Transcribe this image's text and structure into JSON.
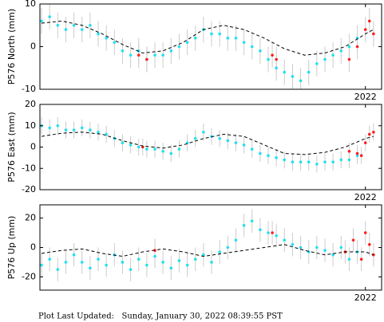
{
  "chart_data": [
    {
      "type": "scatter",
      "ylabel": "P576 North (mm)",
      "xlim": [
        2013.96,
        2022.4
      ],
      "ylim": [
        -10,
        10
      ],
      "yticks": [
        -10,
        0,
        10
      ],
      "xticks": [
        2022
      ],
      "series": [
        {
          "type": "scatter",
          "color": "#22e0f0",
          "error": 3,
          "x": [
            2014.0,
            2014.2,
            2014.4,
            2014.6,
            2014.8,
            2015.0,
            2015.2,
            2015.4,
            2015.6,
            2015.8,
            2016.0,
            2016.2,
            2016.4,
            2016.6,
            2016.8,
            2017.0,
            2017.2,
            2017.4,
            2017.6,
            2017.8,
            2018.0,
            2018.2,
            2018.4,
            2018.6,
            2018.8,
            2019.0,
            2019.2,
            2019.4,
            2019.6,
            2019.8,
            2020.0,
            2020.2,
            2020.4,
            2020.6,
            2020.8,
            2021.0,
            2021.2,
            2021.4,
            2021.6,
            2021.8
          ],
          "values": [
            6,
            7,
            5,
            4,
            5,
            4,
            5,
            3,
            2,
            1,
            -1,
            -2,
            -1,
            -3,
            -2,
            -2,
            -1,
            0,
            1,
            2,
            4,
            3,
            3,
            2,
            2,
            1,
            0,
            -1,
            -3,
            -5,
            -6,
            -7,
            -8,
            -6,
            -4,
            -3,
            -2,
            -1,
            0,
            2
          ]
        },
        {
          "type": "scatter",
          "color": "#ff2020",
          "error": 3,
          "x": [
            2016.4,
            2016.6,
            2019.7,
            2019.8,
            2021.6,
            2021.8,
            2022.0,
            2022.1,
            2022.2
          ],
          "values": [
            -2,
            -3,
            -2,
            -3,
            -3,
            0,
            4,
            6,
            3
          ]
        },
        {
          "type": "line",
          "color": "#000000",
          "x": [
            2014.0,
            2014.5,
            2015.0,
            2015.5,
            2016.0,
            2016.5,
            2017.0,
            2017.5,
            2018.0,
            2018.5,
            2019.0,
            2019.5,
            2020.0,
            2020.5,
            2021.0,
            2021.5,
            2022.0,
            2022.2
          ],
          "values": [
            5.5,
            6,
            5,
            3,
            0.5,
            -1.5,
            -1,
            1,
            4,
            5,
            4,
            2,
            -0.5,
            -2,
            -1.5,
            0,
            3,
            4
          ]
        }
      ]
    },
    {
      "type": "scatter",
      "ylabel": "P576 East (mm)",
      "xlim": [
        2013.96,
        2022.4
      ],
      "ylim": [
        -20,
        20
      ],
      "yticks": [
        -20,
        -10,
        0,
        10,
        20
      ],
      "xticks": [
        2022
      ],
      "series": [
        {
          "type": "scatter",
          "color": "#22e0f0",
          "error": 4,
          "x": [
            2014.0,
            2014.2,
            2014.4,
            2014.6,
            2014.8,
            2015.0,
            2015.2,
            2015.4,
            2015.6,
            2015.8,
            2016.0,
            2016.2,
            2016.4,
            2016.6,
            2016.8,
            2017.0,
            2017.2,
            2017.4,
            2017.6,
            2017.8,
            2018.0,
            2018.2,
            2018.4,
            2018.6,
            2018.8,
            2019.0,
            2019.2,
            2019.4,
            2019.6,
            2019.8,
            2020.0,
            2020.2,
            2020.4,
            2020.6,
            2020.8,
            2021.0,
            2021.2,
            2021.4,
            2021.6,
            2021.8
          ],
          "values": [
            10,
            9,
            10,
            8,
            8,
            9,
            8,
            7,
            6,
            4,
            2,
            1,
            0,
            -1,
            -1,
            -2,
            -3,
            -1,
            2,
            4,
            7,
            5,
            4,
            3,
            2,
            1,
            -1,
            -3,
            -4,
            -5,
            -6,
            -7,
            -7,
            -7,
            -8,
            -7,
            -7,
            -6,
            -6,
            -4
          ]
        },
        {
          "type": "scatter",
          "color": "#ff2020",
          "error": 4,
          "x": [
            2016.5,
            2021.6,
            2021.8,
            2021.9,
            2022.0,
            2022.1,
            2022.2
          ],
          "values": [
            0,
            -2,
            -3,
            -4,
            2,
            6,
            7
          ]
        },
        {
          "type": "line",
          "color": "#000000",
          "x": [
            2014.0,
            2014.5,
            2015.0,
            2015.5,
            2016.0,
            2016.5,
            2017.0,
            2017.5,
            2018.0,
            2018.5,
            2019.0,
            2019.5,
            2020.0,
            2020.5,
            2021.0,
            2021.5,
            2022.0,
            2022.2
          ],
          "values": [
            5,
            6.5,
            7,
            6,
            3,
            0.5,
            -0.5,
            1,
            4,
            6,
            5,
            1,
            -3,
            -3.5,
            -2.5,
            0,
            4,
            5
          ]
        }
      ]
    },
    {
      "type": "scatter",
      "ylabel": "P576 Up (mm)",
      "xlim": [
        2013.96,
        2022.4
      ],
      "ylim": [
        -29,
        29
      ],
      "yticks": [
        -20,
        0,
        20
      ],
      "xticks": [
        2022
      ],
      "series": [
        {
          "type": "scatter",
          "color": "#22e0f0",
          "error": 8,
          "x": [
            2014.0,
            2014.2,
            2014.4,
            2014.6,
            2014.8,
            2015.0,
            2015.2,
            2015.4,
            2015.6,
            2015.8,
            2016.0,
            2016.2,
            2016.4,
            2016.6,
            2016.8,
            2017.0,
            2017.2,
            2017.4,
            2017.6,
            2017.8,
            2018.0,
            2018.2,
            2018.4,
            2018.6,
            2018.8,
            2019.0,
            2019.2,
            2019.4,
            2019.6,
            2019.8,
            2020.0,
            2020.2,
            2020.4,
            2020.6,
            2020.8,
            2021.0,
            2021.2,
            2021.4,
            2021.6,
            2021.8
          ],
          "values": [
            -12,
            -8,
            -15,
            -10,
            -5,
            -10,
            -14,
            -8,
            -12,
            -5,
            -10,
            -15,
            -8,
            -12,
            -6,
            -10,
            -14,
            -9,
            -12,
            -8,
            -5,
            -10,
            -3,
            0,
            5,
            15,
            18,
            12,
            10,
            8,
            5,
            2,
            0,
            -3,
            0,
            -2,
            -5,
            0,
            -8,
            -3
          ]
        },
        {
          "type": "scatter",
          "color": "#ff2020",
          "error": 8,
          "x": [
            2016.8,
            2019.7,
            2021.5,
            2021.7,
            2021.9,
            2022.0,
            2022.1,
            2022.2
          ],
          "values": [
            -2,
            10,
            -3,
            5,
            -8,
            10,
            2,
            -5
          ]
        },
        {
          "type": "line",
          "color": "#000000",
          "x": [
            2014.0,
            2014.5,
            2015.0,
            2015.5,
            2016.0,
            2016.5,
            2017.0,
            2017.5,
            2018.0,
            2018.5,
            2019.0,
            2019.5,
            2020.0,
            2020.5,
            2021.0,
            2021.5,
            2022.0,
            2022.2
          ],
          "values": [
            -4,
            -2,
            -1,
            -4,
            -6,
            -3,
            -1,
            -3,
            -6,
            -4,
            -2,
            0,
            2,
            -2,
            -5,
            -3,
            -3,
            -5
          ]
        }
      ]
    }
  ],
  "footer": "Plot Last Updated:   Sunday, January 30, 2022 08:39:55 PST"
}
